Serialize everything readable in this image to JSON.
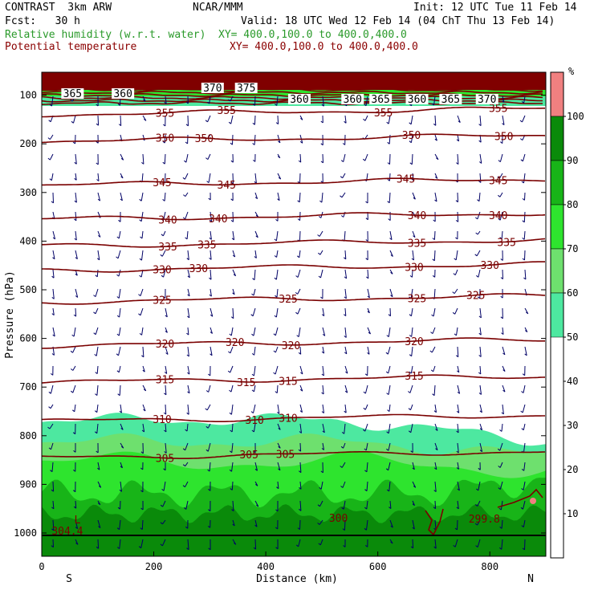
{
  "header": {
    "model": "CONTRAST  3km ARW",
    "org": "NCAR/MMM",
    "init": "Init: 12 UTC Tue 11 Feb 14",
    "fcst": "Fcst:   30 h",
    "valid": "Valid: 18 UTC Wed 12 Feb 14 (04 ChT Thu 13 Feb 14)",
    "field1_name": "Relative humidity (w.r.t. water)",
    "field1_xy": "XY= 400.0,100.0 to 400.0,400.0",
    "field2_name": "Potential temperature",
    "field2_xy": "XY= 400.0,100.0 to 400.0,400.0"
  },
  "colors": {
    "rh_50_60": "#4de8a0",
    "rh_60_70": "#6ee06e",
    "rh_70_80": "#2ee42e",
    "rh_80_90": "#18b418",
    "rh_90_100": "#0a8a0a",
    "rh_100_plus": "#f08080",
    "theta_line": "#7a0000",
    "wind_vector": "#000066",
    "field1_label": "#2a9a2a",
    "field2_label": "#8b0000",
    "stratosphere_fill": "#800000"
  },
  "chart_data": {
    "type": "cross-section",
    "xlabel": "Distance (km)",
    "ylabel": "Pressure (hPa)",
    "xlim": [
      0,
      900
    ],
    "ylim": [
      1050,
      50
    ],
    "x_ticks": [
      "0",
      "200",
      "400",
      "600",
      "800"
    ],
    "x_tick_values": [
      0,
      200,
      400,
      600,
      800
    ],
    "y_ticks": [
      "100",
      "200",
      "300",
      "400",
      "500",
      "600",
      "700",
      "800",
      "900",
      "1000"
    ],
    "y_tick_values": [
      100,
      200,
      300,
      400,
      500,
      600,
      700,
      800,
      900,
      1000
    ],
    "x_end_labels": {
      "left": "S",
      "right": "N"
    },
    "colorbar": {
      "unit": "%",
      "ticks": [
        "10",
        "20",
        "30",
        "40",
        "50",
        "60",
        "70",
        "80",
        "90",
        "100"
      ],
      "levels": [
        50,
        60,
        70,
        80,
        90,
        100
      ]
    },
    "theta_contours": [
      {
        "level": 355,
        "pressure": 140,
        "labels": [
          "355",
          "355",
          "355",
          "355"
        ],
        "label_x": [
          220,
          330,
          610,
          815
        ]
      },
      {
        "level": 350,
        "pressure": 195,
        "labels": [
          "350",
          "350",
          "350",
          "350"
        ],
        "label_x": [
          220,
          290,
          660,
          825
        ]
      },
      {
        "level": 345,
        "pressure": 285,
        "labels": [
          "345",
          "345",
          "345",
          "345"
        ],
        "label_x": [
          215,
          330,
          650,
          815
        ]
      },
      {
        "level": 340,
        "pressure": 355,
        "labels": [
          "340",
          "340",
          "340",
          "340"
        ],
        "label_x": [
          225,
          315,
          670,
          815
        ]
      },
      {
        "level": 335,
        "pressure": 410,
        "labels": [
          "335",
          "335",
          "335",
          "335"
        ],
        "label_x": [
          225,
          295,
          670,
          830
        ]
      },
      {
        "level": 330,
        "pressure": 460,
        "labels": [
          "330",
          "330",
          "330",
          "330"
        ],
        "label_x": [
          215,
          280,
          665,
          800
        ]
      },
      {
        "level": 325,
        "pressure": 525,
        "labels": [
          "325",
          "325",
          "325",
          "325"
        ],
        "label_x": [
          215,
          440,
          670,
          775
        ]
      },
      {
        "level": 320,
        "pressure": 615,
        "labels": [
          "320",
          "320",
          "320",
          "320"
        ],
        "label_x": [
          220,
          345,
          445,
          665
        ]
      },
      {
        "level": 315,
        "pressure": 690,
        "labels": [
          "315",
          "315",
          "315",
          "315"
        ],
        "label_x": [
          220,
          365,
          440,
          665
        ]
      },
      {
        "level": 310,
        "pressure": 770,
        "labels": [
          "310",
          "310",
          "310"
        ],
        "label_x": [
          215,
          380,
          440
        ]
      },
      {
        "level": 305,
        "pressure": 845,
        "labels": [
          "305",
          "305",
          "305"
        ],
        "label_x": [
          220,
          370,
          435
        ]
      }
    ],
    "upper_labels": [
      "365",
      "360",
      "370",
      "375",
      "360",
      "360",
      "365",
      "360",
      "365",
      "370"
    ],
    "upper_label_x": [
      55,
      145,
      305,
      365,
      460,
      555,
      605,
      670,
      730,
      795
    ],
    "surface_labels": [
      "L",
      "304.4",
      "300",
      "299.8"
    ],
    "surface_label_x": [
      58,
      75,
      520,
      805
    ]
  }
}
